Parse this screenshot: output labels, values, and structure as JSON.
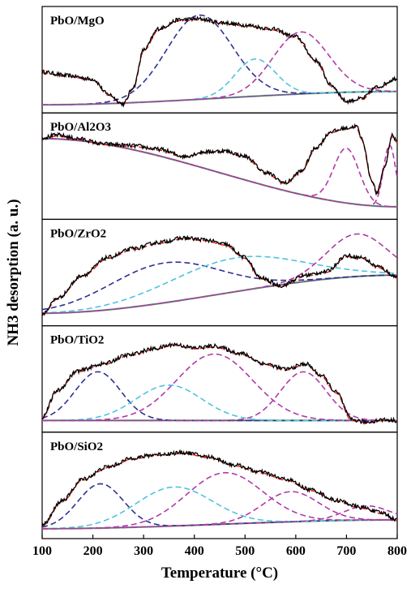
{
  "chart_data": {
    "type": "line",
    "xlabel": "Temperature (°C)",
    "ylabel": "NH3 desorption (a. u.)",
    "xlim": [
      100,
      800
    ],
    "xticks": [
      100,
      200,
      300,
      400,
      500,
      600,
      700,
      800
    ],
    "grid": false,
    "colors": {
      "experimental": "#000000",
      "fit_total": "#e2231a",
      "baseline": "#6ec24a",
      "peak_navy": "#2e3192",
      "peak_cyan": "#4ec3e0",
      "peak_magenta": "#b03aa8",
      "baseline_purple": "#7b3fbf"
    },
    "panels": [
      {
        "label": "PbO/MgO",
        "experimental": [
          [
            100,
            0.37
          ],
          [
            150,
            0.33
          ],
          [
            200,
            0.29
          ],
          [
            230,
            0.12
          ],
          [
            260,
            0.01
          ],
          [
            280,
            0.2
          ],
          [
            300,
            0.62
          ],
          [
            330,
            0.86
          ],
          [
            370,
            0.96
          ],
          [
            410,
            0.97
          ],
          [
            450,
            0.93
          ],
          [
            500,
            0.9
          ],
          [
            550,
            0.86
          ],
          [
            600,
            0.77
          ],
          [
            640,
            0.5
          ],
          [
            670,
            0.22
          ],
          [
            700,
            0.04
          ],
          [
            730,
            0.07
          ],
          [
            760,
            0.2
          ],
          [
            800,
            0.3
          ]
        ],
        "baseline": [
          [
            100,
            0.0
          ],
          [
            800,
            0.15
          ]
        ],
        "peaks": [
          {
            "color": "peak_navy",
            "center": 410,
            "height": 0.95,
            "width": 65
          },
          {
            "color": "peak_cyan",
            "center": 520,
            "height": 0.42,
            "width": 40
          },
          {
            "color": "peak_magenta",
            "center": 610,
            "height": 0.7,
            "width": 55
          }
        ]
      },
      {
        "label": "PbO/Al2O3",
        "experimental": [
          [
            100,
            0.83
          ],
          [
            130,
            0.86
          ],
          [
            170,
            0.82
          ],
          [
            220,
            0.76
          ],
          [
            280,
            0.74
          ],
          [
            330,
            0.7
          ],
          [
            380,
            0.62
          ],
          [
            420,
            0.67
          ],
          [
            460,
            0.68
          ],
          [
            500,
            0.62
          ],
          [
            540,
            0.44
          ],
          [
            580,
            0.32
          ],
          [
            610,
            0.45
          ],
          [
            640,
            0.72
          ],
          [
            670,
            0.9
          ],
          [
            700,
            0.94
          ],
          [
            720,
            0.96
          ],
          [
            730,
            0.82
          ],
          [
            750,
            0.35
          ],
          [
            760,
            0.2
          ],
          [
            775,
            0.5
          ],
          [
            790,
            0.86
          ],
          [
            800,
            0.78
          ]
        ],
        "baseline": [
          [
            100,
            0.82
          ],
          [
            800,
            0.05
          ]
        ],
        "peaks": [
          {
            "color": "peak_magenta",
            "center": 700,
            "height": 0.62,
            "width": 25
          },
          {
            "color": "peak_magenta",
            "center": 785,
            "height": 0.7,
            "width": 12
          }
        ]
      },
      {
        "label": "PbO/ZrO2",
        "experimental": [
          [
            100,
            0.04
          ],
          [
            130,
            0.22
          ],
          [
            180,
            0.48
          ],
          [
            230,
            0.68
          ],
          [
            280,
            0.78
          ],
          [
            330,
            0.85
          ],
          [
            380,
            0.9
          ],
          [
            420,
            0.88
          ],
          [
            460,
            0.83
          ],
          [
            500,
            0.68
          ],
          [
            530,
            0.45
          ],
          [
            570,
            0.36
          ],
          [
            620,
            0.48
          ],
          [
            660,
            0.52
          ],
          [
            700,
            0.7
          ],
          [
            730,
            0.68
          ],
          [
            760,
            0.58
          ],
          [
            800,
            0.46
          ]
        ],
        "baseline": [
          [
            100,
            0.05
          ],
          [
            800,
            0.48
          ]
        ],
        "peaks": [
          {
            "color": "peak_navy",
            "center": 340,
            "height": 0.45,
            "width": 110
          },
          {
            "color": "peak_cyan",
            "center": 480,
            "height": 0.38,
            "width": 130
          },
          {
            "color": "peak_magenta",
            "center": 720,
            "height": 0.48,
            "width": 60
          }
        ]
      },
      {
        "label": "PbO/TiO2",
        "experimental": [
          [
            100,
            0.08
          ],
          [
            130,
            0.38
          ],
          [
            170,
            0.6
          ],
          [
            220,
            0.68
          ],
          [
            270,
            0.78
          ],
          [
            320,
            0.85
          ],
          [
            360,
            0.9
          ],
          [
            400,
            0.86
          ],
          [
            440,
            0.88
          ],
          [
            490,
            0.8
          ],
          [
            540,
            0.68
          ],
          [
            580,
            0.62
          ],
          [
            620,
            0.68
          ],
          [
            650,
            0.55
          ],
          [
            680,
            0.36
          ],
          [
            710,
            0.05
          ],
          [
            740,
            0.02
          ],
          [
            770,
            0.05
          ],
          [
            800,
            0.04
          ]
        ],
        "baseline": [
          [
            100,
            0.04
          ],
          [
            800,
            0.04
          ]
        ],
        "peaks": [
          {
            "color": "peak_navy",
            "center": 210,
            "height": 0.55,
            "width": 45
          },
          {
            "color": "peak_cyan",
            "center": 350,
            "height": 0.4,
            "width": 65
          },
          {
            "color": "peak_magenta",
            "center": 440,
            "height": 0.75,
            "width": 75
          },
          {
            "color": "peak_magenta",
            "center": 615,
            "height": 0.55,
            "width": 45
          }
        ]
      },
      {
        "label": "PbO/SiO2",
        "experimental": [
          [
            100,
            0.06
          ],
          [
            140,
            0.34
          ],
          [
            180,
            0.58
          ],
          [
            230,
            0.72
          ],
          [
            280,
            0.82
          ],
          [
            330,
            0.86
          ],
          [
            380,
            0.88
          ],
          [
            430,
            0.83
          ],
          [
            480,
            0.74
          ],
          [
            530,
            0.66
          ],
          [
            580,
            0.58
          ],
          [
            630,
            0.46
          ],
          [
            680,
            0.34
          ],
          [
            730,
            0.26
          ],
          [
            770,
            0.2
          ],
          [
            800,
            0.12
          ]
        ],
        "baseline": [
          [
            100,
            0.02
          ],
          [
            800,
            0.12
          ]
        ],
        "peaks": [
          {
            "color": "peak_navy",
            "center": 215,
            "height": 0.5,
            "width": 45
          },
          {
            "color": "peak_cyan",
            "center": 360,
            "height": 0.44,
            "width": 75
          },
          {
            "color": "peak_magenta",
            "center": 460,
            "height": 0.58,
            "width": 75
          },
          {
            "color": "peak_magenta",
            "center": 590,
            "height": 0.34,
            "width": 55
          },
          {
            "color": "peak_magenta",
            "center": 740,
            "height": 0.16,
            "width": 45
          }
        ]
      }
    ]
  }
}
